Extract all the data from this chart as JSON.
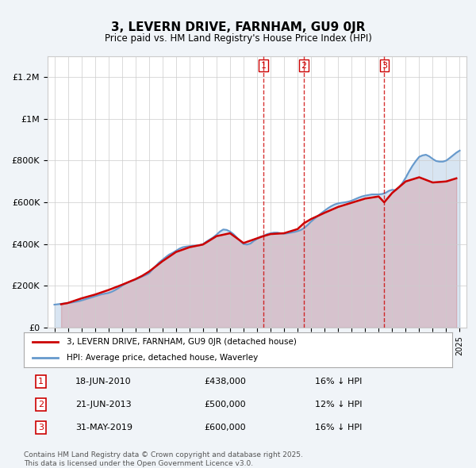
{
  "title": "3, LEVERN DRIVE, FARNHAM, GU9 0JR",
  "subtitle": "Price paid vs. HM Land Registry's House Price Index (HPI)",
  "hpi_label": "HPI: Average price, detached house, Waverley",
  "price_label": "3, LEVERN DRIVE, FARNHAM, GU9 0JR (detached house)",
  "price_color": "#cc0000",
  "hpi_color": "#6699cc",
  "background_color": "#f0f4f8",
  "plot_bg_color": "#ffffff",
  "ylim": [
    0,
    1300000
  ],
  "yticks": [
    0,
    200000,
    400000,
    600000,
    800000,
    1000000,
    1200000
  ],
  "ytick_labels": [
    "£0",
    "£200K",
    "£400K",
    "£600K",
    "£800K",
    "£1M",
    "£1.2M"
  ],
  "xstart_year": 1995,
  "xend_year": 2025,
  "transactions": [
    {
      "label": "1",
      "date": "18-JUN-2010",
      "year": 2010.46,
      "price": 438000,
      "hpi_pct": "16%",
      "vline_x": 2010.46
    },
    {
      "label": "2",
      "date": "21-JUN-2013",
      "year": 2013.47,
      "price": 500000,
      "hpi_pct": "12%",
      "vline_x": 2013.47
    },
    {
      "label": "3",
      "date": "31-MAY-2019",
      "year": 2019.41,
      "price": 600000,
      "hpi_pct": "16%",
      "vline_x": 2019.41
    }
  ],
  "footer": "Contains HM Land Registry data © Crown copyright and database right 2025.\nThis data is licensed under the Open Government Licence v3.0.",
  "hpi_data_x": [
    1995.0,
    1995.25,
    1995.5,
    1995.75,
    1996.0,
    1996.25,
    1996.5,
    1996.75,
    1997.0,
    1997.25,
    1997.5,
    1997.75,
    1998.0,
    1998.25,
    1998.5,
    1998.75,
    1999.0,
    1999.25,
    1999.5,
    1999.75,
    2000.0,
    2000.25,
    2000.5,
    2000.75,
    2001.0,
    2001.25,
    2001.5,
    2001.75,
    2002.0,
    2002.25,
    2002.5,
    2002.75,
    2003.0,
    2003.25,
    2003.5,
    2003.75,
    2004.0,
    2004.25,
    2004.5,
    2004.75,
    2005.0,
    2005.25,
    2005.5,
    2005.75,
    2006.0,
    2006.25,
    2006.5,
    2006.75,
    2007.0,
    2007.25,
    2007.5,
    2007.75,
    2008.0,
    2008.25,
    2008.5,
    2008.75,
    2009.0,
    2009.25,
    2009.5,
    2009.75,
    2010.0,
    2010.25,
    2010.5,
    2010.75,
    2011.0,
    2011.25,
    2011.5,
    2011.75,
    2012.0,
    2012.25,
    2012.5,
    2012.75,
    2013.0,
    2013.25,
    2013.5,
    2013.75,
    2014.0,
    2014.25,
    2014.5,
    2014.75,
    2015.0,
    2015.25,
    2015.5,
    2015.75,
    2016.0,
    2016.25,
    2016.5,
    2016.75,
    2017.0,
    2017.25,
    2017.5,
    2017.75,
    2018.0,
    2018.25,
    2018.5,
    2018.75,
    2019.0,
    2019.25,
    2019.5,
    2019.75,
    2020.0,
    2020.25,
    2020.5,
    2020.75,
    2021.0,
    2021.25,
    2021.5,
    2021.75,
    2022.0,
    2022.25,
    2022.5,
    2022.75,
    2023.0,
    2023.25,
    2023.5,
    2023.75,
    2024.0,
    2024.25,
    2024.5,
    2024.75,
    2025.0
  ],
  "hpi_data_y": [
    110000,
    112000,
    114000,
    116000,
    118000,
    120000,
    123000,
    126000,
    130000,
    135000,
    140000,
    145000,
    150000,
    155000,
    160000,
    163000,
    166000,
    172000,
    180000,
    190000,
    200000,
    210000,
    218000,
    225000,
    230000,
    238000,
    245000,
    252000,
    260000,
    278000,
    295000,
    312000,
    325000,
    338000,
    350000,
    358000,
    368000,
    378000,
    385000,
    388000,
    390000,
    392000,
    393000,
    395000,
    400000,
    412000,
    422000,
    432000,
    445000,
    460000,
    470000,
    468000,
    460000,
    448000,
    432000,
    415000,
    400000,
    398000,
    402000,
    415000,
    425000,
    435000,
    440000,
    448000,
    452000,
    455000,
    455000,
    452000,
    450000,
    452000,
    455000,
    458000,
    462000,
    468000,
    478000,
    492000,
    508000,
    522000,
    535000,
    548000,
    560000,
    572000,
    582000,
    590000,
    595000,
    598000,
    600000,
    603000,
    608000,
    615000,
    622000,
    628000,
    632000,
    635000,
    638000,
    638000,
    638000,
    640000,
    645000,
    655000,
    660000,
    658000,
    672000,
    692000,
    718000,
    748000,
    775000,
    798000,
    818000,
    825000,
    828000,
    820000,
    808000,
    798000,
    795000,
    795000,
    800000,
    812000,
    825000,
    838000,
    848000
  ],
  "price_data_x": [
    1995.5,
    1996.0,
    1997.0,
    1998.0,
    1999.0,
    2000.0,
    2001.0,
    2001.5,
    2002.0,
    2003.0,
    2004.0,
    2005.0,
    2006.0,
    2007.0,
    2008.0,
    2009.0,
    2010.46,
    2011.0,
    2012.0,
    2013.0,
    2013.47,
    2014.0,
    2015.0,
    2016.0,
    2017.0,
    2018.0,
    2019.0,
    2019.41,
    2020.0,
    2021.0,
    2022.0,
    2023.0,
    2024.0,
    2024.75
  ],
  "price_data_y": [
    112000,
    118000,
    140000,
    158000,
    180000,
    205000,
    232000,
    248000,
    268000,
    318000,
    362000,
    385000,
    398000,
    438000,
    452000,
    405000,
    438000,
    448000,
    452000,
    472000,
    500000,
    520000,
    550000,
    578000,
    598000,
    618000,
    628000,
    600000,
    645000,
    700000,
    720000,
    695000,
    700000,
    715000
  ]
}
